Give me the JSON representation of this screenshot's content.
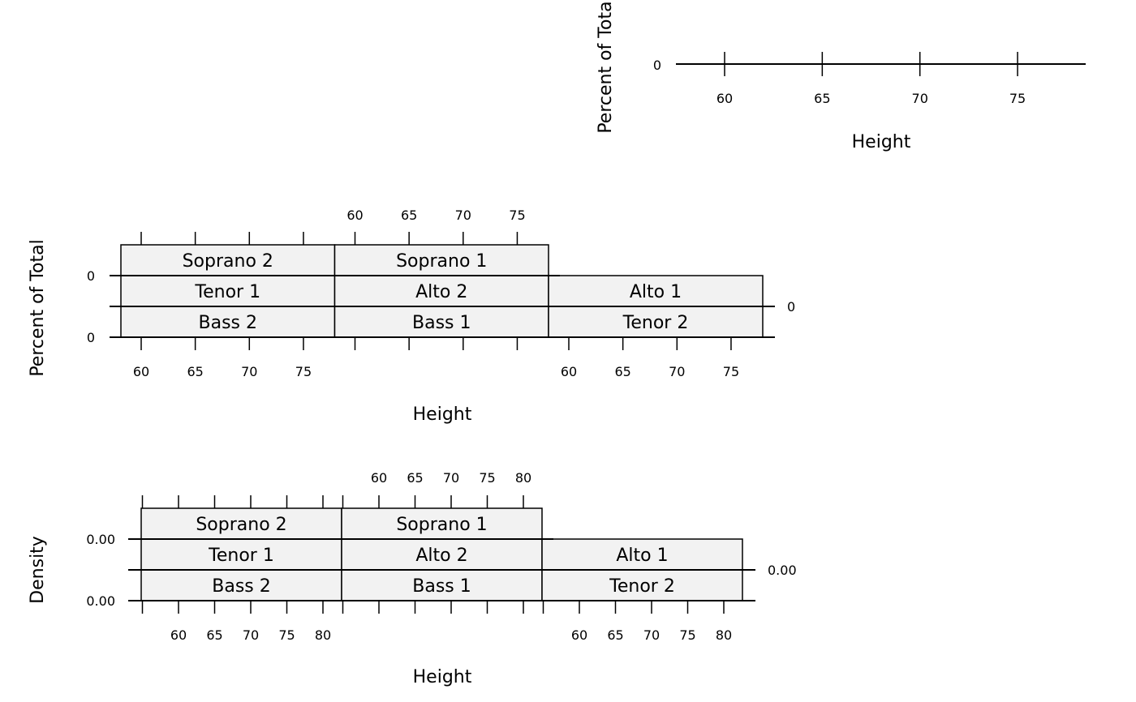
{
  "chart_data": [
    {
      "type": "histogram",
      "xlabel": "Height",
      "ylabel": "Percent of Total",
      "x_ticks": [
        "60",
        "65",
        "70",
        "75"
      ],
      "y_ticks": [
        "0"
      ],
      "panels": []
    },
    {
      "type": "histogram",
      "xlabel": "Height",
      "ylabel": "Percent of Total",
      "x_ticks": [
        "60",
        "65",
        "70",
        "75"
      ],
      "y_ticks": [
        "0"
      ],
      "panels": [
        "Bass 2",
        "Bass 1",
        "Tenor 2",
        "Tenor 1",
        "Alto 2",
        "Alto 1",
        "Soprano 2",
        "Soprano 1"
      ]
    },
    {
      "type": "density",
      "xlabel": "Height",
      "ylabel": "Density",
      "x_ticks": [
        "60",
        "65",
        "70",
        "75",
        "80"
      ],
      "y_ticks": [
        "0.00"
      ],
      "panels": [
        "Bass 2",
        "Bass 1",
        "Tenor 2",
        "Tenor 1",
        "Alto 2",
        "Alto 1",
        "Soprano 2",
        "Soprano 1"
      ]
    }
  ],
  "colors": {
    "strip_fill": "#f2f2f2",
    "line": "#000000"
  }
}
